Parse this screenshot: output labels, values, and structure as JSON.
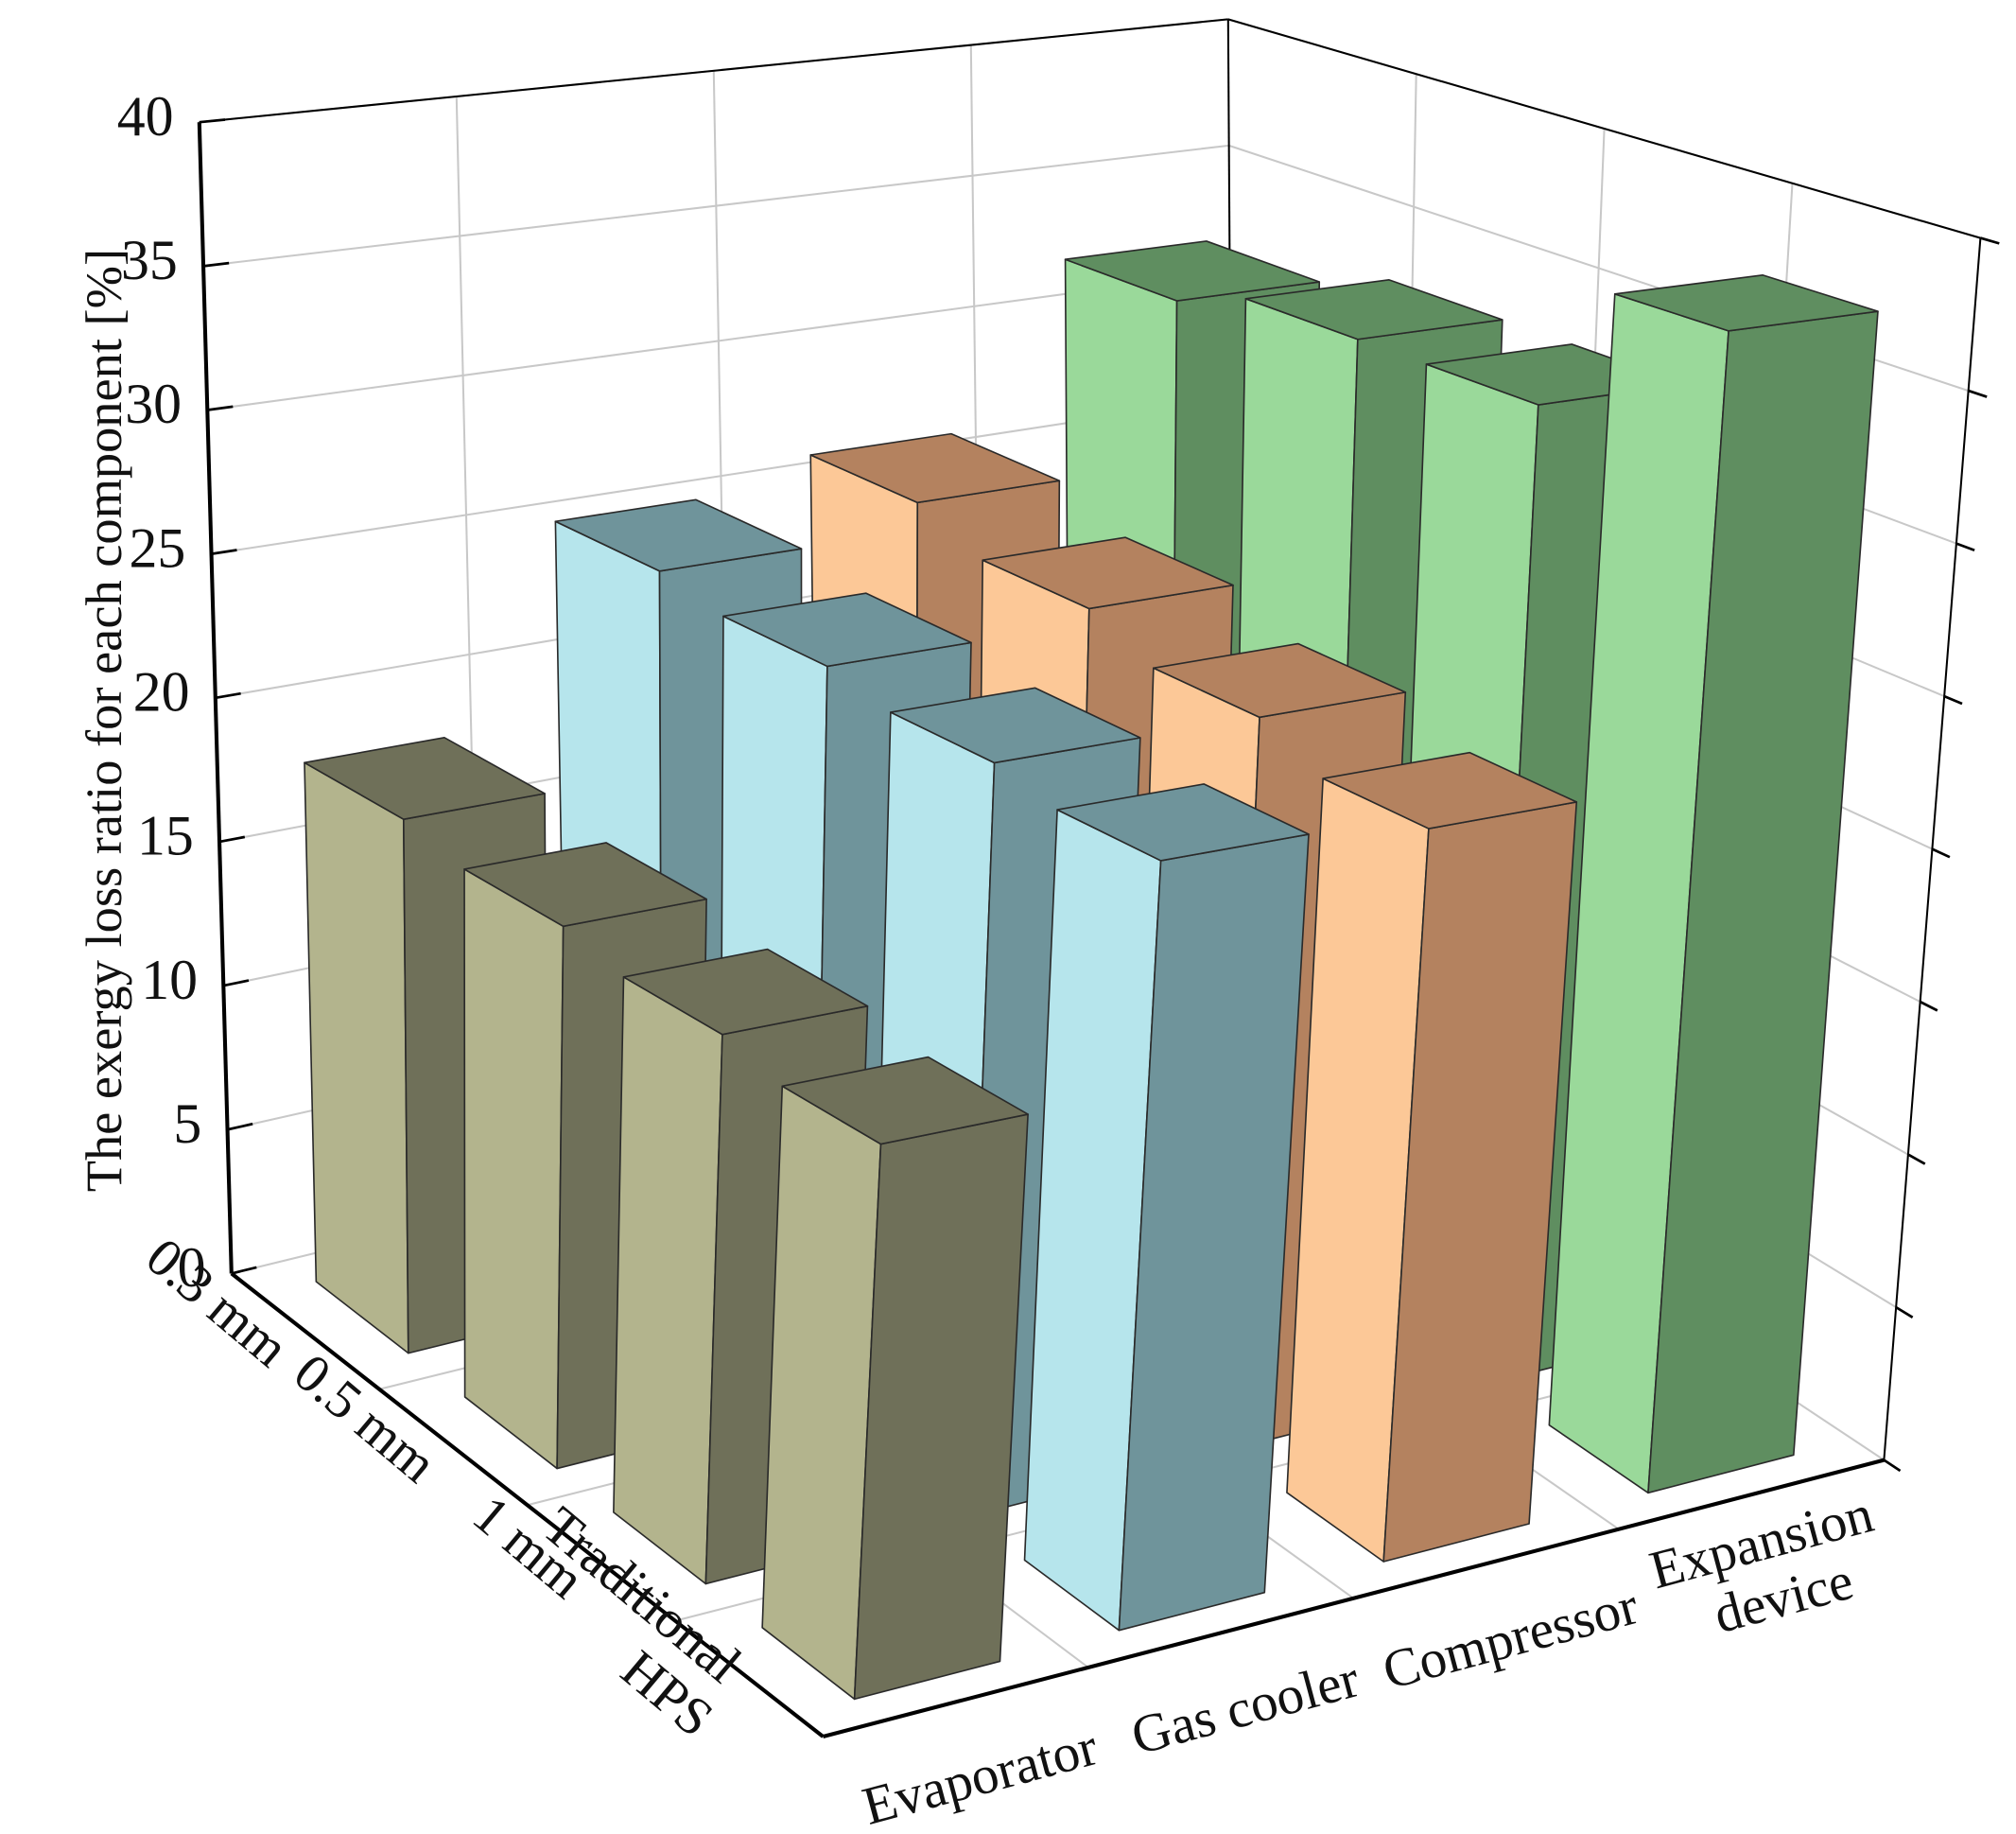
{
  "chart_data": {
    "type": "bar3d",
    "y_label": "The exergy loss ratio for each component [%]",
    "categories": [
      "0.3 mm",
      "0.5 mm",
      "1 mm",
      "Traditional HPS"
    ],
    "series": [
      {
        "name": "Evaporator",
        "color": "#b3b48d",
        "dark_color": "#6f7059",
        "values": [
          18,
          17.5,
          17,
          16.5
        ]
      },
      {
        "name": "Gas cooler",
        "color": "#b6e5ec",
        "dark_color": "#6f949b",
        "values": [
          25,
          24.5,
          24,
          23.5
        ]
      },
      {
        "name": "Compressor",
        "color": "#fcc897",
        "dark_color": "#b4825f",
        "values": [
          26,
          25,
          24,
          23
        ]
      },
      {
        "name": "Expansion device",
        "color": "#9ad99a",
        "dark_color": "#5f8e60",
        "values": [
          32,
          33,
          33,
          37.5
        ]
      }
    ],
    "ylim": [
      0,
      40
    ],
    "yticks": [
      0,
      5,
      10,
      15,
      20,
      25,
      30,
      35,
      40
    ],
    "grid": true
  }
}
